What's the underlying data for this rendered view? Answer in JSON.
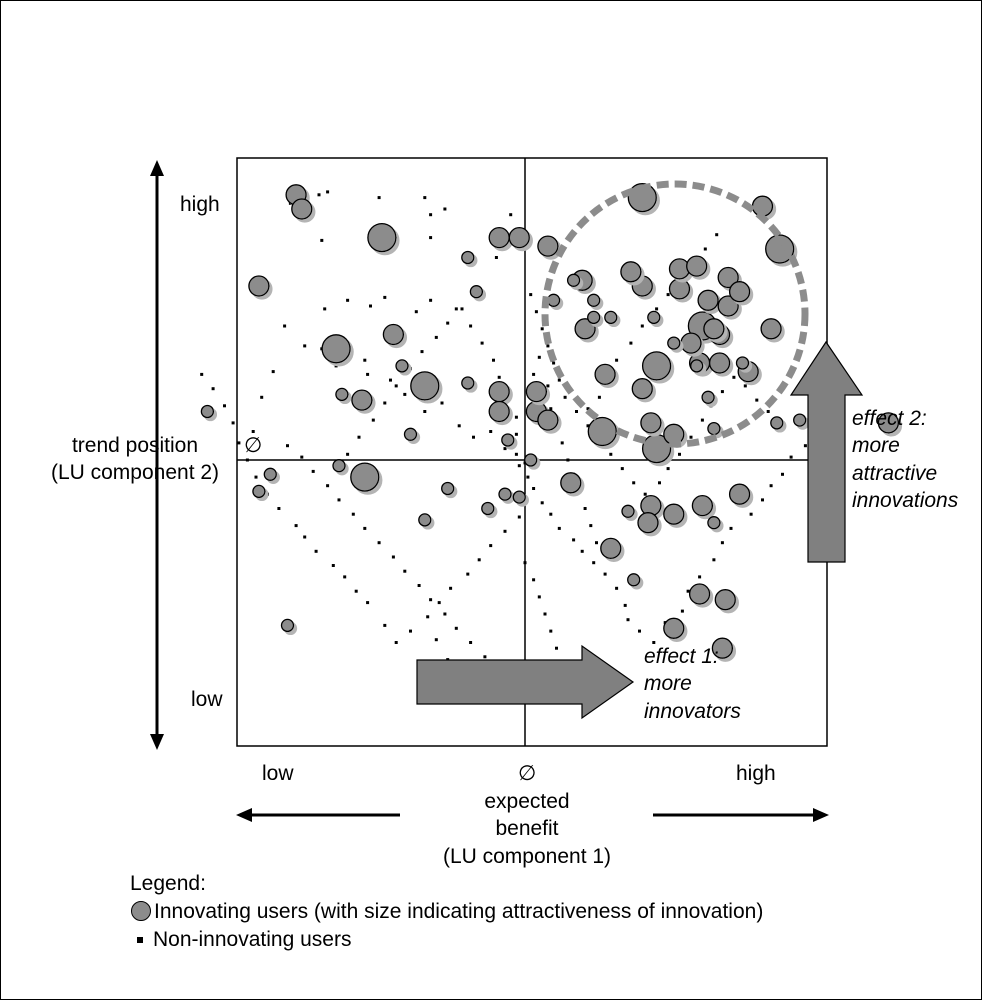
{
  "chart_data": {
    "type": "scatter",
    "x_axis": {
      "label_lines": [
        "expected",
        "benefit",
        "(LU component 1)"
      ],
      "low_label": "low",
      "high_label": "high",
      "mean_label": "∅",
      "range": [
        -1,
        1
      ]
    },
    "y_axis": {
      "label_lines": [
        "trend position",
        "(LU component 2)"
      ],
      "low_label": "low",
      "high_label": "high",
      "mean_label": "∅",
      "range": [
        -1,
        1
      ]
    },
    "effects": {
      "effect1_lines": [
        "effect 1:",
        "more",
        "innovators"
      ],
      "effect2_lines": [
        "effect 2:",
        "more",
        "attractive",
        "innovations"
      ]
    },
    "legend": {
      "title": "Legend:",
      "innovating_label": "Innovating users (with size indicating attractiveness of innovation)",
      "non_innovating_label": "Non-innovating users"
    },
    "colors": {
      "bubble_fill": "#8c8c8c",
      "bubble_shadow": "#b4b4b4",
      "arrow_fill": "#808080",
      "dashed_circle": "#8c8c8c"
    },
    "innovating_users": [
      {
        "x": 0.41,
        "y": 0.92,
        "size": 3
      },
      {
        "x": 0.89,
        "y": 0.74,
        "size": 3
      },
      {
        "x": -0.5,
        "y": 0.78,
        "size": 3
      },
      {
        "x": -0.66,
        "y": 0.39,
        "size": 3
      },
      {
        "x": -0.35,
        "y": 0.26,
        "size": 3
      },
      {
        "x": 0.46,
        "y": 0.04,
        "size": 3
      },
      {
        "x": 0.27,
        "y": 0.1,
        "size": 3
      },
      {
        "x": 0.46,
        "y": 0.33,
        "size": 3
      },
      {
        "x": 0.62,
        "y": 0.47,
        "size": 3
      },
      {
        "x": -0.56,
        "y": -0.06,
        "size": 3
      },
      {
        "x": 0.41,
        "y": 0.61,
        "size": 2
      },
      {
        "x": 0.54,
        "y": 0.6,
        "size": 2
      },
      {
        "x": 0.21,
        "y": 0.46,
        "size": 2
      },
      {
        "x": 0.28,
        "y": 0.3,
        "size": 2
      },
      {
        "x": 0.41,
        "y": 0.25,
        "size": 2
      },
      {
        "x": 0.83,
        "y": 0.89,
        "size": 2
      },
      {
        "x": 0.54,
        "y": 0.67,
        "size": 2
      },
      {
        "x": 0.64,
        "y": 0.56,
        "size": 2
      },
      {
        "x": 0.2,
        "y": 0.63,
        "size": 2
      },
      {
        "x": -0.93,
        "y": 0.61,
        "size": 2
      },
      {
        "x": -0.46,
        "y": 0.44,
        "size": 2
      },
      {
        "x": -0.57,
        "y": 0.21,
        "size": 2
      },
      {
        "x": -0.09,
        "y": 0.24,
        "size": 2
      },
      {
        "x": -0.09,
        "y": 0.17,
        "size": 2
      },
      {
        "x": 0.04,
        "y": 0.17,
        "size": 2
      },
      {
        "x": 0.08,
        "y": 0.14,
        "size": 2
      },
      {
        "x": 0.16,
        "y": -0.08,
        "size": 2
      },
      {
        "x": 0.44,
        "y": -0.16,
        "size": 2
      },
      {
        "x": 0.3,
        "y": -0.31,
        "size": 2
      },
      {
        "x": 0.68,
        "y": 0.44,
        "size": 2
      },
      {
        "x": 0.43,
        "y": -0.22,
        "size": 2
      },
      {
        "x": 0.75,
        "y": -0.12,
        "size": 2
      },
      {
        "x": 0.62,
        "y": -0.16,
        "size": 2
      },
      {
        "x": 0.04,
        "y": 0.24,
        "size": 2
      },
      {
        "x": 0.61,
        "y": 0.34,
        "size": 2
      },
      {
        "x": 0.44,
        "y": 0.13,
        "size": 2
      },
      {
        "x": 0.66,
        "y": 0.46,
        "size": 2
      },
      {
        "x": 0.78,
        "y": 0.31,
        "size": 2
      },
      {
        "x": 0.58,
        "y": 0.41,
        "size": 2
      },
      {
        "x": 0.6,
        "y": 0.68,
        "size": 2
      },
      {
        "x": 0.71,
        "y": 0.54,
        "size": 2
      },
      {
        "x": -0.09,
        "y": 0.78,
        "size": 2
      },
      {
        "x": -0.02,
        "y": 0.78,
        "size": 2
      },
      {
        "x": 0.08,
        "y": 0.75,
        "size": 2
      },
      {
        "x": -0.8,
        "y": 0.93,
        "size": 2
      },
      {
        "x": -0.78,
        "y": 0.88,
        "size": 2
      },
      {
        "x": 0.71,
        "y": 0.64,
        "size": 2
      },
      {
        "x": 0.75,
        "y": 0.59,
        "size": 2
      },
      {
        "x": 0.37,
        "y": 0.66,
        "size": 2
      },
      {
        "x": 0.86,
        "y": 0.46,
        "size": 2
      },
      {
        "x": 0.68,
        "y": 0.34,
        "size": 2
      },
      {
        "x": 0.52,
        "y": 0.09,
        "size": 2
      },
      {
        "x": 1.27,
        "y": 0.13,
        "size": 2
      },
      {
        "x": 0.61,
        "y": -0.47,
        "size": 2
      },
      {
        "x": 0.7,
        "y": -0.49,
        "size": 2
      },
      {
        "x": 0.69,
        "y": -0.66,
        "size": 2
      },
      {
        "x": 0.52,
        "y": -0.59,
        "size": 2
      },
      {
        "x": 0.52,
        "y": -0.19,
        "size": 2
      },
      {
        "x": -0.64,
        "y": 0.23,
        "size": 1
      },
      {
        "x": -0.43,
        "y": 0.33,
        "size": 1
      },
      {
        "x": -0.2,
        "y": 0.27,
        "size": 1
      },
      {
        "x": 0.17,
        "y": 0.63,
        "size": 1
      },
      {
        "x": 0.24,
        "y": 0.56,
        "size": 1
      },
      {
        "x": 0.1,
        "y": 0.56,
        "size": 1
      },
      {
        "x": -0.17,
        "y": 0.59,
        "size": 1
      },
      {
        "x": -0.06,
        "y": 0.07,
        "size": 1
      },
      {
        "x": 0.02,
        "y": 0.0,
        "size": 1
      },
      {
        "x": 0.36,
        "y": -0.18,
        "size": 1
      },
      {
        "x": 0.66,
        "y": -0.22,
        "size": 1
      },
      {
        "x": 0.66,
        "y": 0.11,
        "size": 1
      },
      {
        "x": 0.24,
        "y": 0.5,
        "size": 1
      },
      {
        "x": -0.07,
        "y": -0.12,
        "size": 1
      },
      {
        "x": -0.13,
        "y": -0.17,
        "size": 1
      },
      {
        "x": -0.35,
        "y": -0.21,
        "size": 1
      },
      {
        "x": 0.52,
        "y": 0.41,
        "size": 1
      },
      {
        "x": 0.45,
        "y": 0.5,
        "size": 1
      },
      {
        "x": 0.6,
        "y": 0.33,
        "size": 1
      },
      {
        "x": 0.64,
        "y": 0.22,
        "size": 1
      },
      {
        "x": 0.76,
        "y": 0.34,
        "size": 1
      },
      {
        "x": -0.89,
        "y": -0.05,
        "size": 1
      },
      {
        "x": -0.65,
        "y": -0.02,
        "size": 1
      },
      {
        "x": -0.4,
        "y": 0.09,
        "size": 1
      },
      {
        "x": -0.27,
        "y": -0.1,
        "size": 1
      },
      {
        "x": 0.3,
        "y": 0.5,
        "size": 1
      },
      {
        "x": -0.2,
        "y": 0.71,
        "size": 1
      },
      {
        "x": 0.38,
        "y": -0.42,
        "size": 1
      },
      {
        "x": 0.88,
        "y": 0.13,
        "size": 1
      },
      {
        "x": 0.96,
        "y": 0.14,
        "size": 1
      },
      {
        "x": -0.93,
        "y": -0.11,
        "size": 1
      },
      {
        "x": -0.02,
        "y": -0.13,
        "size": 1
      },
      {
        "x": -0.83,
        "y": -0.58,
        "size": 1
      },
      {
        "x": -1.11,
        "y": 0.17,
        "size": 1
      }
    ],
    "non_innovating_users": [
      [
        -0.72,
        0.93
      ],
      [
        -0.69,
        0.94
      ],
      [
        -0.82,
        0.9
      ],
      [
        -0.51,
        0.92
      ],
      [
        -0.35,
        0.92
      ],
      [
        -0.28,
        0.88
      ],
      [
        -0.71,
        0.77
      ],
      [
        -0.33,
        0.86
      ],
      [
        -0.33,
        0.78
      ],
      [
        -0.05,
        0.86
      ],
      [
        -0.1,
        0.71
      ],
      [
        -0.18,
        0.6
      ],
      [
        -0.22,
        0.53
      ],
      [
        -0.33,
        0.56
      ],
      [
        -0.38,
        0.52
      ],
      [
        -0.49,
        0.57
      ],
      [
        -0.54,
        0.54
      ],
      [
        -0.62,
        0.56
      ],
      [
        -0.7,
        0.53
      ],
      [
        -0.84,
        0.47
      ],
      [
        -0.77,
        0.4
      ],
      [
        -0.71,
        0.39
      ],
      [
        -0.66,
        0.33
      ],
      [
        -0.56,
        0.35
      ],
      [
        -0.55,
        0.3
      ],
      [
        -0.47,
        0.28
      ],
      [
        -0.42,
        0.23
      ],
      [
        -0.35,
        0.17
      ],
      [
        -0.29,
        0.2
      ],
      [
        -0.23,
        0.12
      ],
      [
        -0.18,
        0.08
      ],
      [
        -0.12,
        0.1
      ],
      [
        -0.07,
        0.04
      ],
      [
        -0.03,
        0.09
      ],
      [
        -0.03,
        0.02
      ],
      [
        0.0,
        -0.01
      ],
      [
        0.01,
        -0.06
      ],
      [
        0.03,
        -0.1
      ],
      [
        0.06,
        -0.15
      ],
      [
        0.09,
        -0.19
      ],
      [
        0.12,
        -0.24
      ],
      [
        0.17,
        -0.28
      ],
      [
        0.2,
        -0.32
      ],
      [
        0.24,
        -0.36
      ],
      [
        0.28,
        -0.4
      ],
      [
        0.32,
        -0.45
      ],
      [
        0.35,
        -0.51
      ],
      [
        0.36,
        -0.56
      ],
      [
        0.4,
        -0.6
      ],
      [
        0.45,
        -0.64
      ],
      [
        0.49,
        -0.57
      ],
      [
        0.55,
        -0.53
      ],
      [
        0.57,
        -0.46
      ],
      [
        0.61,
        -0.41
      ],
      [
        0.66,
        -0.35
      ],
      [
        0.69,
        -0.29
      ],
      [
        0.72,
        -0.24
      ],
      [
        0.79,
        -0.19
      ],
      [
        0.83,
        -0.14
      ],
      [
        0.86,
        -0.09
      ],
      [
        0.9,
        -0.05
      ],
      [
        0.93,
        0.01
      ],
      [
        0.98,
        0.05
      ],
      [
        1.03,
        0.1
      ],
      [
        1.05,
        0.18
      ],
      [
        -0.02,
        -0.2
      ],
      [
        -0.07,
        -0.25
      ],
      [
        -0.12,
        -0.3
      ],
      [
        -0.16,
        -0.35
      ],
      [
        -0.2,
        -0.4
      ],
      [
        -0.26,
        -0.45
      ],
      [
        -0.3,
        -0.5
      ],
      [
        -0.34,
        -0.55
      ],
      [
        -0.4,
        -0.6
      ],
      [
        -0.45,
        -0.64
      ],
      [
        -0.49,
        -0.58
      ],
      [
        -0.55,
        -0.5
      ],
      [
        -0.59,
        -0.46
      ],
      [
        -0.63,
        -0.41
      ],
      [
        -0.67,
        -0.37
      ],
      [
        -0.73,
        -0.32
      ],
      [
        -0.77,
        -0.27
      ],
      [
        -0.8,
        -0.23
      ],
      [
        -0.86,
        -0.17
      ],
      [
        -0.9,
        -0.12
      ],
      [
        -0.94,
        -0.06
      ],
      [
        -0.97,
        0.0
      ],
      [
        -1.0,
        0.06
      ],
      [
        -1.02,
        0.13
      ],
      [
        -1.05,
        0.19
      ],
      [
        -1.09,
        0.25
      ],
      [
        -1.13,
        0.3
      ],
      [
        0.02,
        0.58
      ],
      [
        0.04,
        0.52
      ],
      [
        0.06,
        0.46
      ],
      [
        0.08,
        0.4
      ],
      [
        0.1,
        0.34
      ],
      [
        0.12,
        0.28
      ],
      [
        0.14,
        0.22
      ],
      [
        0.18,
        0.17
      ],
      [
        0.22,
        0.12
      ],
      [
        0.26,
        0.06
      ],
      [
        0.3,
        0.02
      ],
      [
        0.34,
        -0.03
      ],
      [
        0.38,
        -0.08
      ],
      [
        0.42,
        -0.12
      ],
      [
        0.47,
        -0.08
      ],
      [
        0.5,
        -0.03
      ],
      [
        0.54,
        0.02
      ],
      [
        0.58,
        0.08
      ],
      [
        0.62,
        0.14
      ],
      [
        0.65,
        0.19
      ],
      [
        0.69,
        0.24
      ],
      [
        0.73,
        0.29
      ],
      [
        0.77,
        0.26
      ],
      [
        0.81,
        0.21
      ],
      [
        0.85,
        0.17
      ],
      [
        -0.62,
        0.02
      ],
      [
        -0.58,
        0.08
      ],
      [
        -0.53,
        0.14
      ],
      [
        -0.49,
        0.2
      ],
      [
        -0.45,
        0.26
      ],
      [
        -0.4,
        0.32
      ],
      [
        -0.36,
        0.38
      ],
      [
        -0.31,
        0.43
      ],
      [
        -0.27,
        0.48
      ],
      [
        -0.24,
        0.53
      ],
      [
        -0.19,
        0.47
      ],
      [
        -0.15,
        0.41
      ],
      [
        -0.11,
        0.35
      ],
      [
        -0.09,
        0.29
      ],
      [
        -0.06,
        0.22
      ],
      [
        -0.03,
        0.15
      ],
      [
        -0.02,
        -0.02
      ],
      [
        0.03,
        0.3
      ],
      [
        0.05,
        0.36
      ],
      [
        0.08,
        0.26
      ],
      [
        0.09,
        0.18
      ],
      [
        0.11,
        0.12
      ],
      [
        0.13,
        0.06
      ],
      [
        0.15,
        0.0
      ],
      [
        0.17,
        -0.05
      ],
      [
        0.19,
        -0.11
      ],
      [
        0.21,
        -0.17
      ],
      [
        0.23,
        -0.23
      ],
      [
        0.25,
        -0.29
      ],
      [
        -0.88,
        0.31
      ],
      [
        -0.92,
        0.22
      ],
      [
        -0.95,
        0.1
      ],
      [
        -0.83,
        0.05
      ],
      [
        -0.78,
        0.01
      ],
      [
        -0.74,
        -0.04
      ],
      [
        -0.69,
        -0.09
      ],
      [
        -0.65,
        -0.14
      ],
      [
        -0.6,
        -0.19
      ],
      [
        -0.56,
        -0.24
      ],
      [
        -0.51,
        -0.29
      ],
      [
        -0.46,
        -0.34
      ],
      [
        -0.42,
        -0.39
      ],
      [
        -0.37,
        -0.44
      ],
      [
        -0.33,
        -0.49
      ],
      [
        -0.28,
        -0.54
      ],
      [
        -0.24,
        -0.59
      ],
      [
        -0.19,
        -0.64
      ],
      [
        -0.14,
        -0.69
      ],
      [
        -0.1,
        -0.74
      ],
      [
        -0.31,
        -0.63
      ],
      [
        -0.27,
        -0.7
      ],
      [
        -0.23,
        -0.76
      ],
      [
        0.0,
        -0.36
      ],
      [
        0.03,
        -0.42
      ],
      [
        0.05,
        -0.48
      ],
      [
        0.07,
        -0.54
      ],
      [
        0.09,
        -0.6
      ],
      [
        0.11,
        -0.66
      ],
      [
        0.13,
        -0.72
      ],
      [
        0.37,
        0.41
      ],
      [
        0.41,
        0.47
      ],
      [
        0.46,
        0.53
      ],
      [
        0.5,
        0.58
      ],
      [
        0.55,
        0.63
      ],
      [
        0.58,
        0.69
      ],
      [
        0.63,
        0.74
      ],
      [
        0.67,
        0.79
      ],
      [
        0.32,
        0.35
      ],
      [
        0.29,
        0.28
      ],
      [
        0.26,
        0.22
      ],
      [
        0.22,
        0.18
      ]
    ]
  }
}
